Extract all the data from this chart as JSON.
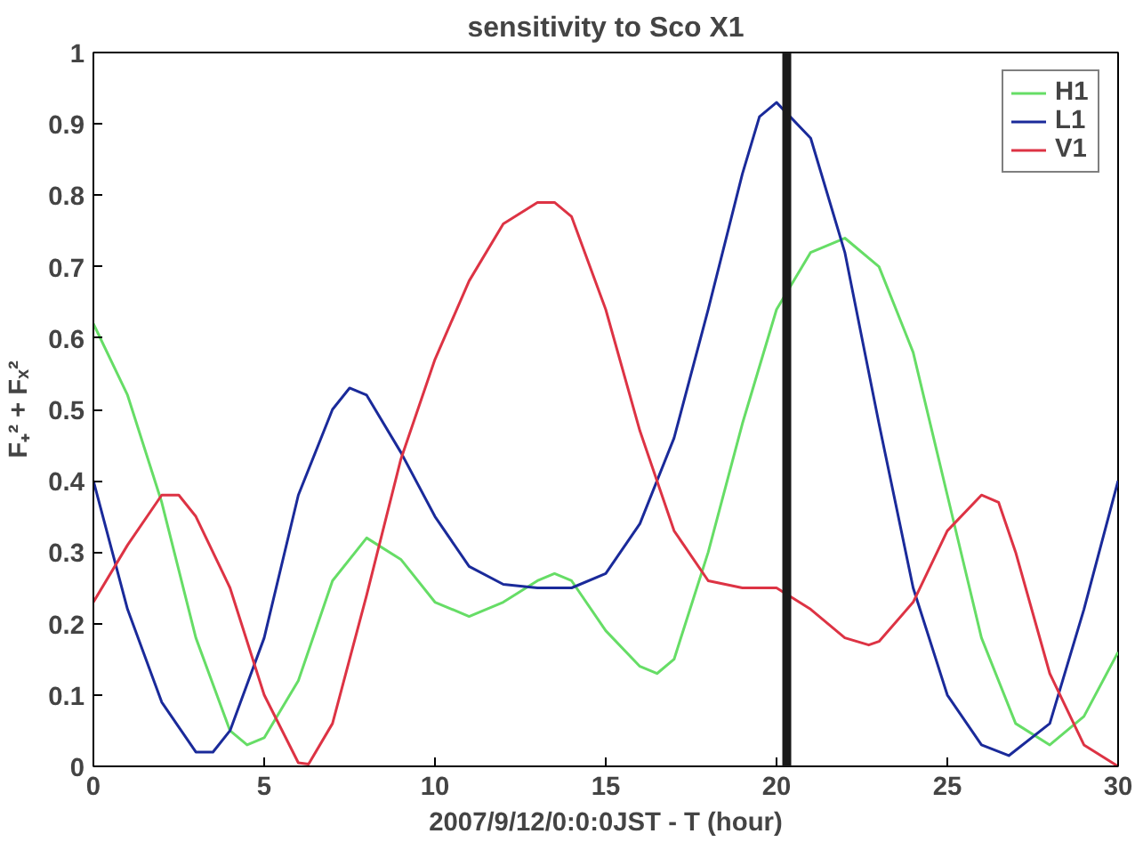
{
  "chart_data": {
    "type": "line",
    "title": "sensitivity to Sco X1",
    "xlabel": "2007/9/12/0:0:0JST - T (hour)",
    "ylabel": "F₊² + Fₓ²",
    "xlim": [
      0,
      30
    ],
    "ylim": [
      0,
      1
    ],
    "xticks": [
      0,
      5,
      10,
      15,
      20,
      25,
      30
    ],
    "yticks": [
      0,
      0.1,
      0.2,
      0.3,
      0.4,
      0.5,
      0.6,
      0.7,
      0.8,
      0.9,
      1
    ],
    "grid": false,
    "legend": "top right",
    "marker": "none",
    "line_style": "solid",
    "ref_lines": [
      {
        "axis": "x",
        "value": 20.3,
        "color": "#1a1a1a"
      }
    ],
    "series": [
      {
        "name": "H1",
        "color": "#66dd66",
        "x": [
          0,
          1,
          2,
          3,
          4,
          4.5,
          5,
          6,
          7,
          8,
          9,
          10,
          11,
          12,
          13,
          13.5,
          14,
          15,
          16,
          16.5,
          17,
          18,
          19,
          20,
          21,
          22,
          23,
          24,
          25,
          26,
          27,
          28,
          29,
          30
        ],
        "values": [
          0.62,
          0.52,
          0.37,
          0.18,
          0.05,
          0.03,
          0.04,
          0.12,
          0.26,
          0.32,
          0.29,
          0.23,
          0.21,
          0.23,
          0.26,
          0.27,
          0.26,
          0.19,
          0.14,
          0.13,
          0.15,
          0.3,
          0.48,
          0.64,
          0.72,
          0.74,
          0.7,
          0.58,
          0.38,
          0.18,
          0.06,
          0.03,
          0.07,
          0.16
        ]
      },
      {
        "name": "L1",
        "color": "#1a2a9a",
        "x": [
          0,
          1,
          2,
          3,
          3.5,
          4,
          5,
          6,
          7,
          7.5,
          8,
          9,
          10,
          11,
          12,
          13,
          14,
          15,
          16,
          17,
          18,
          19,
          19.5,
          20,
          21,
          22,
          23,
          24,
          25,
          26,
          26.8,
          28,
          29,
          30
        ],
        "values": [
          0.4,
          0.22,
          0.09,
          0.02,
          0.02,
          0.05,
          0.18,
          0.38,
          0.5,
          0.53,
          0.52,
          0.44,
          0.35,
          0.28,
          0.255,
          0.25,
          0.25,
          0.27,
          0.34,
          0.46,
          0.64,
          0.83,
          0.91,
          0.93,
          0.88,
          0.72,
          0.48,
          0.25,
          0.1,
          0.03,
          0.015,
          0.06,
          0.22,
          0.4
        ]
      },
      {
        "name": "V1",
        "color": "#dd3344",
        "x": [
          0,
          1,
          2,
          2.5,
          3,
          4,
          5,
          6,
          6.3,
          7,
          8,
          9,
          10,
          11,
          12,
          13,
          13.5,
          14,
          15,
          16,
          17,
          18,
          19,
          20,
          21,
          22,
          22.7,
          23,
          24,
          25,
          26,
          26.5,
          27,
          28,
          29,
          30
        ],
        "values": [
          0.23,
          0.31,
          0.38,
          0.38,
          0.35,
          0.25,
          0.1,
          0.005,
          0.003,
          0.06,
          0.24,
          0.43,
          0.57,
          0.68,
          0.76,
          0.79,
          0.79,
          0.77,
          0.64,
          0.47,
          0.33,
          0.26,
          0.25,
          0.25,
          0.22,
          0.18,
          0.17,
          0.175,
          0.23,
          0.33,
          0.38,
          0.37,
          0.3,
          0.13,
          0.03,
          0.0
        ]
      }
    ]
  }
}
